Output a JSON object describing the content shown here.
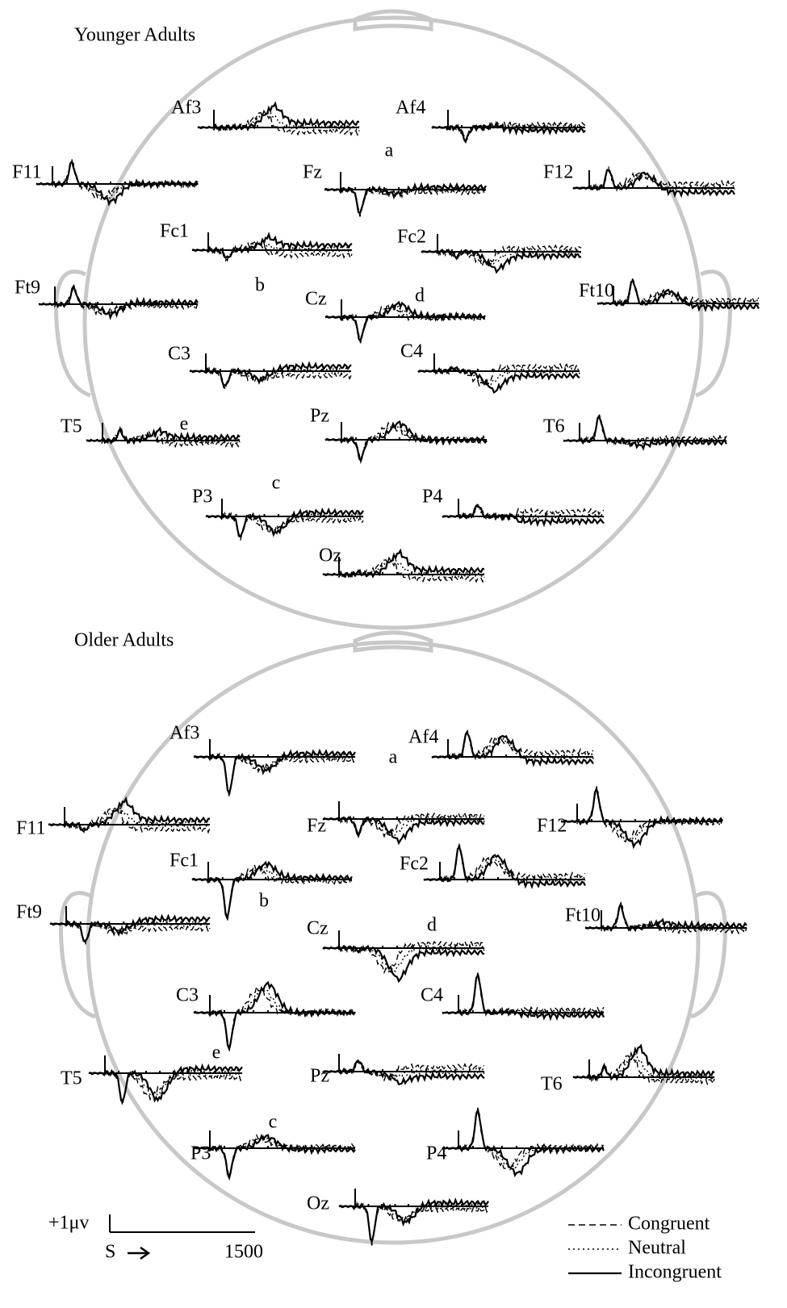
{
  "panels": [
    {
      "title": "Younger Adults",
      "electrodes": [
        "Af3",
        "Af4",
        "F11",
        "Fz",
        "F12",
        "Fc1",
        "Fc2",
        "Ft9",
        "Cz",
        "Ft10",
        "C3",
        "C4",
        "T5",
        "Pz",
        "T6",
        "P3",
        "P4",
        "Oz"
      ],
      "annotations": [
        "a",
        "b",
        "c",
        "d",
        "e"
      ]
    },
    {
      "title": "Older Adults",
      "electrodes": [
        "Af3",
        "Af4",
        "F11",
        "Fz",
        "F12",
        "Fc1",
        "Fc2",
        "Ft9",
        "Cz",
        "Ft10",
        "C3",
        "C4",
        "T5",
        "Pz",
        "T6",
        "P3",
        "P4",
        "Oz"
      ],
      "annotations": [
        "a",
        "b",
        "c",
        "d",
        "e"
      ]
    }
  ],
  "scale": {
    "amplitude": "+1μv",
    "start": "S",
    "end": "1500"
  },
  "legend": [
    "Congruent",
    "Neutral",
    "Incongruent"
  ]
}
